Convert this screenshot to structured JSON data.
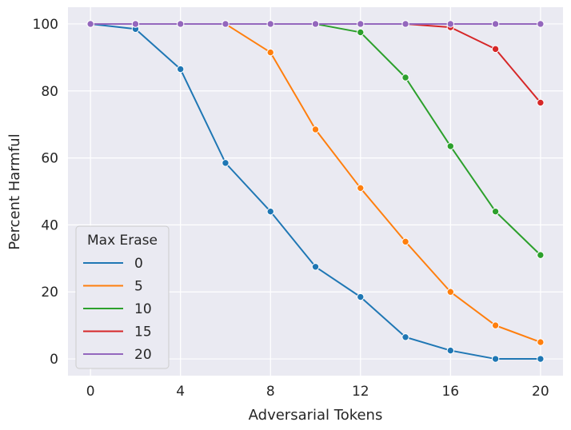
{
  "chart_data": {
    "type": "line",
    "xlabel": "Adversarial Tokens",
    "ylabel": "Percent Harmful",
    "x": [
      0,
      2,
      4,
      6,
      8,
      10,
      12,
      14,
      16,
      18,
      20
    ],
    "xlim": [
      -1,
      21
    ],
    "ylim": [
      -5,
      105
    ],
    "xticks": [
      0,
      4,
      8,
      12,
      16,
      20
    ],
    "yticks": [
      0,
      20,
      40,
      60,
      80,
      100
    ],
    "grid": true,
    "legend": {
      "title": "Max Erase",
      "position": "lower-left"
    },
    "series": [
      {
        "name": "0",
        "color": "#1f77b4",
        "values": [
          100,
          98.5,
          86.5,
          58.5,
          44,
          27.5,
          18.5,
          6.5,
          2.5,
          0,
          0
        ]
      },
      {
        "name": "5",
        "color": "#ff7f0e",
        "values": [
          100,
          100,
          100,
          100,
          91.5,
          68.5,
          51,
          35,
          20,
          10,
          5
        ]
      },
      {
        "name": "10",
        "color": "#2ca02c",
        "values": [
          100,
          100,
          100,
          100,
          100,
          100,
          97.5,
          84,
          63.5,
          44,
          31
        ]
      },
      {
        "name": "15",
        "color": "#d62728",
        "values": [
          100,
          100,
          100,
          100,
          100,
          100,
          100,
          100,
          99,
          92.5,
          76.5
        ]
      },
      {
        "name": "20",
        "color": "#9467bd",
        "values": [
          100,
          100,
          100,
          100,
          100,
          100,
          100,
          100,
          100,
          100,
          100
        ]
      }
    ]
  }
}
